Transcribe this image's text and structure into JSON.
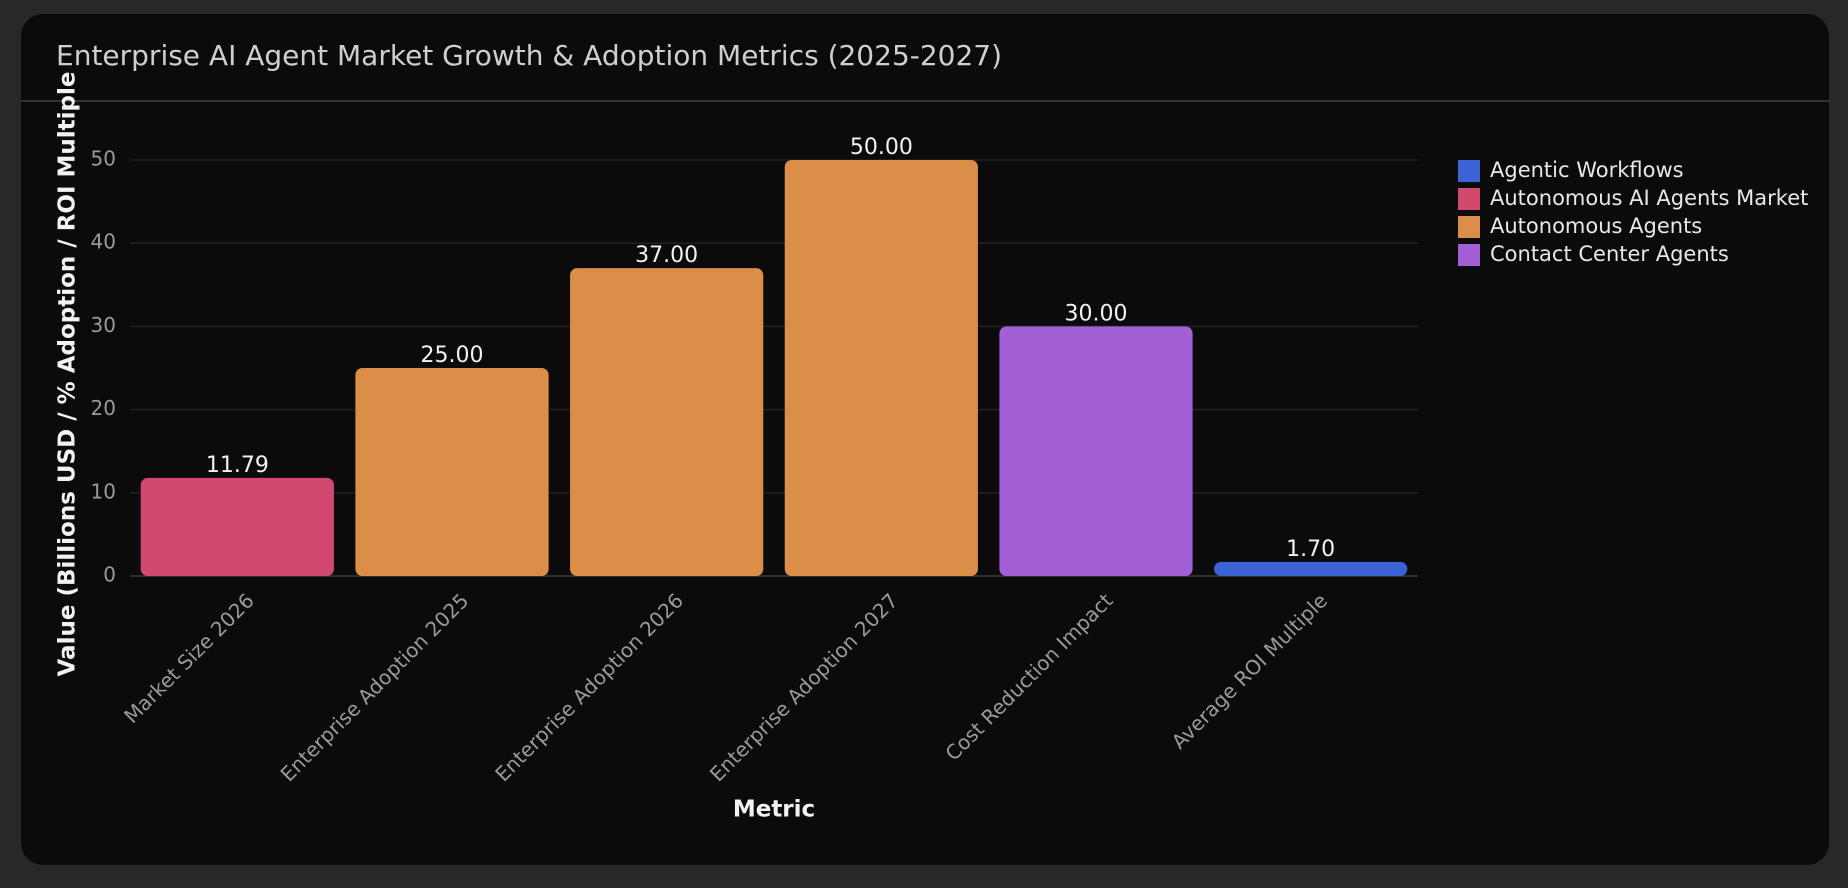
{
  "chart_data": {
    "type": "bar",
    "title": "Enterprise AI Agent Market Growth & Adoption Metrics (2025-2027)",
    "x_label": "Metric",
    "y_label": "Value (Billions USD / % Adoption / ROI Multiple",
    "categories": [
      "Market Size 2026",
      "Enterprise Adoption 2025",
      "Enterprise Adoption 2026",
      "Enterprise Adoption 2027",
      "Cost Reduction Impact",
      "Average ROI Multiple"
    ],
    "series": [
      {
        "name": "Agentic Workflows",
        "color": "#3b63d6",
        "values": [
          null,
          null,
          null,
          null,
          null,
          1.7
        ],
        "value_labels": [
          null,
          null,
          null,
          null,
          null,
          "1.70"
        ]
      },
      {
        "name": "Autonomous AI Agents Market",
        "color": "#d2486e",
        "values": [
          11.79,
          null,
          null,
          null,
          null,
          null
        ],
        "value_labels": [
          "11.79",
          null,
          null,
          null,
          null,
          null
        ]
      },
      {
        "name": "Autonomous Agents",
        "color": "#db8e48",
        "values": [
          null,
          25,
          37,
          50,
          null,
          null
        ],
        "value_labels": [
          null,
          "25.00",
          "37.00",
          "50.00",
          null,
          null
        ]
      },
      {
        "name": "Contact Center Agents",
        "color": "#a25fd6",
        "values": [
          null,
          null,
          null,
          null,
          30,
          null
        ],
        "value_labels": [
          null,
          null,
          null,
          null,
          "30.00",
          null
        ]
      }
    ],
    "ylim": [
      0,
      50
    ],
    "yticks": [
      0,
      10,
      20,
      30,
      40,
      50
    ],
    "grid": true,
    "legend": "right"
  }
}
